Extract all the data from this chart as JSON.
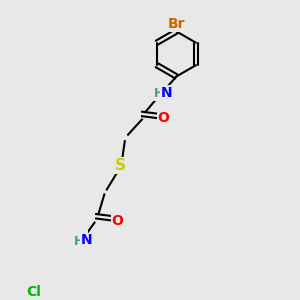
{
  "bg_color": "#e8e8e8",
  "atom_colors": {
    "C": "#000000",
    "H": "#4a9a9a",
    "N": "#0000ff",
    "O": "#ff0000",
    "S": "#cccc00",
    "Br": "#cc6600",
    "Cl": "#00bb00"
  },
  "bond_lw": 1.5,
  "font_size": 10,
  "ring_r": 0.55,
  "double_sep": 0.055
}
